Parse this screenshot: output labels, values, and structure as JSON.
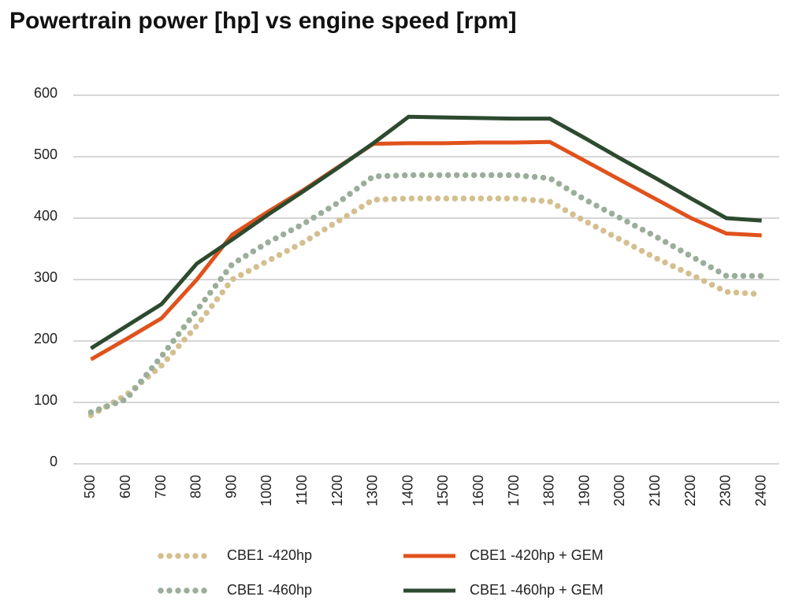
{
  "chart_data": {
    "type": "line",
    "title": "Powertrain power [hp] vs engine speed [rpm]",
    "categories": [
      500,
      600,
      700,
      800,
      900,
      1000,
      1100,
      1200,
      1300,
      1400,
      1500,
      1600,
      1700,
      1800,
      1900,
      2000,
      2100,
      2200,
      2300,
      2400
    ],
    "series": [
      {
        "name": "CBE1 -420hp",
        "color": "#d4bf8f",
        "style": "dotted",
        "values": [
          79,
          112,
          160,
          225,
          300,
          330,
          360,
          395,
          430,
          432,
          432,
          432,
          432,
          427,
          395,
          365,
          335,
          308,
          280,
          276
        ]
      },
      {
        "name": "CBE1 -420hp + GEM",
        "color": "#e0521c",
        "style": "solid",
        "values": [
          170,
          203,
          237,
          300,
          373,
          410,
          445,
          483,
          521,
          522,
          522,
          523,
          523,
          524,
          493,
          462,
          431,
          400,
          375,
          372
        ]
      },
      {
        "name": "CBE1 -460hp",
        "color": "#9aae9a",
        "style": "dotted",
        "values": [
          84,
          105,
          175,
          250,
          325,
          360,
          390,
          425,
          468,
          470,
          470,
          470,
          470,
          465,
          430,
          400,
          370,
          338,
          306,
          306
        ]
      },
      {
        "name": "CBE1 -460hp + GEM",
        "color": "#2d4a2f",
        "style": "solid",
        "values": [
          188,
          224,
          260,
          326,
          365,
          405,
          443,
          482,
          522,
          565,
          564,
          563,
          562,
          562,
          530,
          497,
          465,
          432,
          400,
          396
        ]
      }
    ],
    "ylim": [
      0,
      600
    ],
    "yticks": [
      0,
      100,
      200,
      300,
      400,
      500,
      600
    ],
    "grid": true,
    "legend": "bottom"
  }
}
